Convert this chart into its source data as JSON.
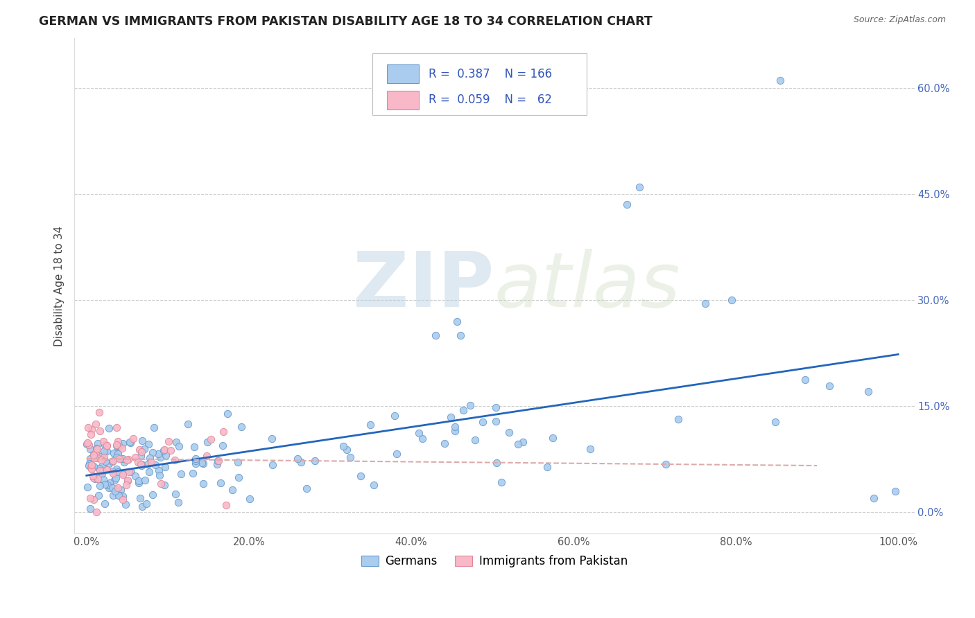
{
  "title": "GERMAN VS IMMIGRANTS FROM PAKISTAN DISABILITY AGE 18 TO 34 CORRELATION CHART",
  "source": "Source: ZipAtlas.com",
  "ylabel": "Disability Age 18 to 34",
  "xtick_labels": [
    "0.0%",
    "",
    "20.0%",
    "",
    "40.0%",
    "",
    "60.0%",
    "",
    "80.0%",
    "",
    "100.0%"
  ],
  "xtick_vals": [
    0.0,
    0.1,
    0.2,
    0.3,
    0.4,
    0.5,
    0.6,
    0.7,
    0.8,
    0.9,
    1.0
  ],
  "ytick_labels": [
    "0.0%",
    "15.0%",
    "30.0%",
    "45.0%",
    "60.0%"
  ],
  "ytick_vals": [
    0.0,
    0.15,
    0.3,
    0.45,
    0.6
  ],
  "german_color": "#aaccee",
  "german_edge_color": "#6699cc",
  "pakistan_color": "#f9b8c8",
  "pakistan_edge_color": "#dd8899",
  "german_line_color": "#2266bb",
  "pakistan_line_color": "#ddaaaa",
  "watermark_zip": "ZIP",
  "watermark_atlas": "atlas",
  "background_color": "#ffffff",
  "grid_color": "#cccccc",
  "legend_text_color": "#3355bb",
  "title_color": "#222222",
  "axis_label_color": "#555555"
}
